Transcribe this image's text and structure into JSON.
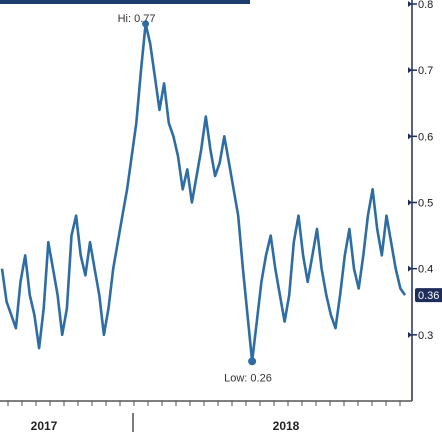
{
  "chart_data": {
    "type": "line",
    "title": "",
    "xlabel": "",
    "ylabel": "",
    "ylim": [
      0.2,
      0.8
    ],
    "y_ticks": [
      "0.8",
      "0.7",
      "0.6",
      "0.5",
      "0.4",
      "0.3"
    ],
    "x_ticks": [
      "2017",
      "2018"
    ],
    "annotations": {
      "high": "Hi: 0.77",
      "low": "Low: 0.26"
    },
    "last_value_marker": "0.36",
    "colors": {
      "line": "#2e6da4",
      "axis_right": "#1f2d5a",
      "marker": "#2e6da4",
      "top_band": "#1f3c6e"
    },
    "series": [
      {
        "values": [
          0.4,
          0.35,
          0.33,
          0.31,
          0.38,
          0.42,
          0.36,
          0.33,
          0.28,
          0.34,
          0.44,
          0.4,
          0.36,
          0.3,
          0.34,
          0.45,
          0.48,
          0.42,
          0.39,
          0.44,
          0.4,
          0.36,
          0.3,
          0.34,
          0.4,
          0.44,
          0.48,
          0.52,
          0.57,
          0.62,
          0.7,
          0.77,
          0.74,
          0.69,
          0.64,
          0.68,
          0.62,
          0.6,
          0.57,
          0.52,
          0.55,
          0.5,
          0.54,
          0.58,
          0.63,
          0.58,
          0.54,
          0.56,
          0.6,
          0.56,
          0.52,
          0.48,
          0.4,
          0.33,
          0.26,
          0.32,
          0.38,
          0.42,
          0.45,
          0.4,
          0.36,
          0.32,
          0.36,
          0.44,
          0.48,
          0.42,
          0.38,
          0.42,
          0.46,
          0.4,
          0.36,
          0.33,
          0.31,
          0.36,
          0.42,
          0.46,
          0.4,
          0.37,
          0.42,
          0.48,
          0.52,
          0.46,
          0.42,
          0.48,
          0.44,
          0.4,
          0.37,
          0.36
        ]
      }
    ]
  }
}
